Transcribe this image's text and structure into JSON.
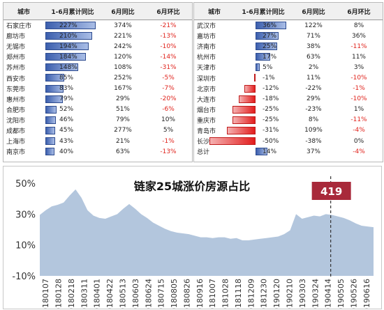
{
  "tables": {
    "headers": [
      "城市",
      "1-6月累计同比",
      "6月同比",
      "6月环比"
    ],
    "left": [
      {
        "city": "石家庄市",
        "cum": "227%",
        "cum_value": 227,
        "yoy": "374%",
        "mom": "-21%"
      },
      {
        "city": "廊坊市",
        "cum": "210%",
        "cum_value": 210,
        "yoy": "221%",
        "mom": "-13%"
      },
      {
        "city": "无锡市",
        "cum": "194%",
        "cum_value": 194,
        "yoy": "242%",
        "mom": "-10%"
      },
      {
        "city": "郑州市",
        "cum": "184%",
        "cum_value": 184,
        "yoy": "120%",
        "mom": "-14%"
      },
      {
        "city": "苏州市",
        "cum": "148%",
        "cum_value": 148,
        "yoy": "108%",
        "mom": "-31%"
      },
      {
        "city": "西安市",
        "cum": "85%",
        "cum_value": 85,
        "yoy": "252%",
        "mom": "-5%"
      },
      {
        "city": "东莞市",
        "cum": "83%",
        "cum_value": 83,
        "yoy": "167%",
        "mom": "-7%"
      },
      {
        "city": "惠州市",
        "cum": "79%",
        "cum_value": 79,
        "yoy": "29%",
        "mom": "-20%"
      },
      {
        "city": "合肥市",
        "cum": "52%",
        "cum_value": 52,
        "yoy": "51%",
        "mom": "-6%"
      },
      {
        "city": "沈阳市",
        "cum": "46%",
        "cum_value": 46,
        "yoy": "79%",
        "mom": "10%"
      },
      {
        "city": "成都市",
        "cum": "45%",
        "cum_value": 45,
        "yoy": "277%",
        "mom": "5%"
      },
      {
        "city": "上海市",
        "cum": "43%",
        "cum_value": 43,
        "yoy": "21%",
        "mom": "-1%"
      },
      {
        "city": "南京市",
        "cum": "40%",
        "cum_value": 40,
        "yoy": "63%",
        "mom": "-13%"
      }
    ],
    "right": [
      {
        "city": "武汉市",
        "cum": "36%",
        "cum_value": 36,
        "yoy": "122%",
        "mom": "8%"
      },
      {
        "city": "嘉坊市",
        "cum": "27%",
        "cum_value": 27,
        "yoy": "71%",
        "mom": "36%"
      },
      {
        "city": "济南市",
        "cum": "25%",
        "cum_value": 25,
        "yoy": "38%",
        "mom": "-11%"
      },
      {
        "city": "杭州市",
        "cum": "17%",
        "cum_value": 17,
        "yoy": "63%",
        "mom": "11%"
      },
      {
        "city": "天津市",
        "cum": "5%",
        "cum_value": 5,
        "yoy": "2%",
        "mom": "3%"
      },
      {
        "city": "深圳市",
        "cum": "-1%",
        "cum_value": -1,
        "yoy": "11%",
        "mom": "-10%"
      },
      {
        "city": "北京市",
        "cum": "-12%",
        "cum_value": -12,
        "yoy": "-22%",
        "mom": "-1%"
      },
      {
        "city": "大连市",
        "cum": "-18%",
        "cum_value": -18,
        "yoy": "29%",
        "mom": "-10%"
      },
      {
        "city": "烟台市",
        "cum": "-25%",
        "cum_value": -25,
        "yoy": "-23%",
        "mom": "1%"
      },
      {
        "city": "重庆市",
        "cum": "-25%",
        "cum_value": -25,
        "yoy": "8%",
        "mom": "-11%"
      },
      {
        "city": "青岛市",
        "cum": "-31%",
        "cum_value": -31,
        "yoy": "109%",
        "mom": "-4%"
      },
      {
        "city": "长沙市",
        "cum": "-50%",
        "cum_value": -50,
        "yoy": "-38%",
        "mom": "0%"
      },
      {
        "city": "总计",
        "cum": "14%",
        "cum_value": 14,
        "yoy": "37%",
        "mom": "-4%"
      }
    ]
  },
  "chart_data": {
    "type": "area",
    "title": "链家25城涨价房源占比",
    "annotation": "419",
    "annotation_x": "20190414",
    "ylim": [
      -10,
      50
    ],
    "yticks": [
      "50%",
      "30%",
      "10%",
      "-10%"
    ],
    "ytick_values": [
      50,
      30,
      10,
      -10
    ],
    "x_tick_labels": [
      "20180107",
      "20180128",
      "20180218",
      "20180311",
      "20180401",
      "20180422",
      "20180513",
      "20180603",
      "20180624",
      "20180715",
      "20180805",
      "20180826",
      "20180916",
      "20181007",
      "20181028",
      "20181118",
      "20181209",
      "20181230",
      "20190120",
      "20190210",
      "20190303",
      "20190324",
      "20190414",
      "20190505",
      "20190526",
      "20190616"
    ],
    "series_color": "#b3c6dd",
    "annotation_color": "#a8293a",
    "values": [
      29.5,
      32.5,
      35.0,
      36.0,
      37.5,
      42.0,
      46.0,
      40.5,
      32.5,
      29.0,
      27.5,
      27.0,
      28.5,
      30.0,
      33.5,
      36.5,
      33.5,
      30.0,
      27.5,
      24.5,
      22.5,
      20.5,
      19.0,
      18.0,
      17.5,
      17.0,
      16.0,
      15.0,
      15.0,
      14.5,
      15.0,
      15.0,
      14.0,
      14.5,
      13.0,
      13.0,
      13.5,
      14.0,
      14.5,
      15.0,
      15.5,
      17.0,
      19.5,
      30.0,
      27.0,
      28.0,
      29.0,
      28.5,
      30.0,
      29.5,
      28.5,
      27.5,
      26.0,
      24.0,
      22.5,
      22.0,
      21.5
    ]
  }
}
